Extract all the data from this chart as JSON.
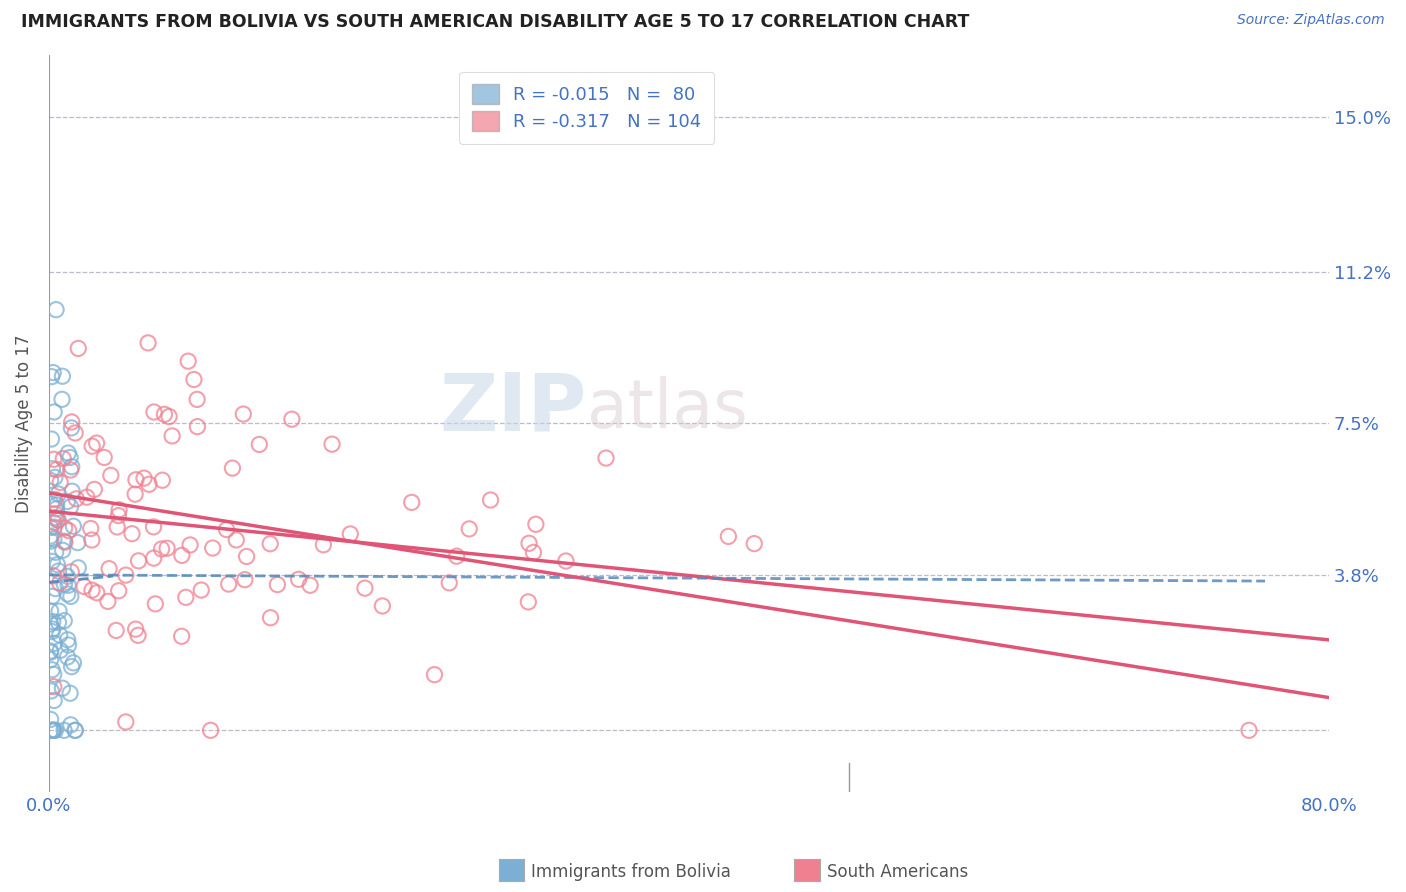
{
  "title": "IMMIGRANTS FROM BOLIVIA VS SOUTH AMERICAN DISABILITY AGE 5 TO 17 CORRELATION CHART",
  "source": "Source: ZipAtlas.com",
  "ylabel": "Disability Age 5 to 17",
  "ytick_vals": [
    0.0,
    0.038,
    0.075,
    0.112,
    0.15
  ],
  "ytick_labels": [
    "",
    "3.8%",
    "7.5%",
    "11.2%",
    "15.0%"
  ],
  "xlim": [
    0.0,
    0.8
  ],
  "ylim": [
    -0.015,
    0.165
  ],
  "bolivia_R": -0.015,
  "bolivia_N": 80,
  "sa_R": -0.317,
  "sa_N": 104,
  "bolivia_color": "#7bafd4",
  "sa_color": "#f08090",
  "bolivia_line_color": "#5588bb",
  "sa_line_color": "#e05575",
  "watermark_zip": "ZIP",
  "watermark_atlas": "atlas",
  "background_color": "#ffffff",
  "grid_color": "#bbbbcc",
  "title_color": "#222222",
  "label_color": "#4472c4",
  "legend_text_color": "#4472c4",
  "legend_label_color": "#333333"
}
